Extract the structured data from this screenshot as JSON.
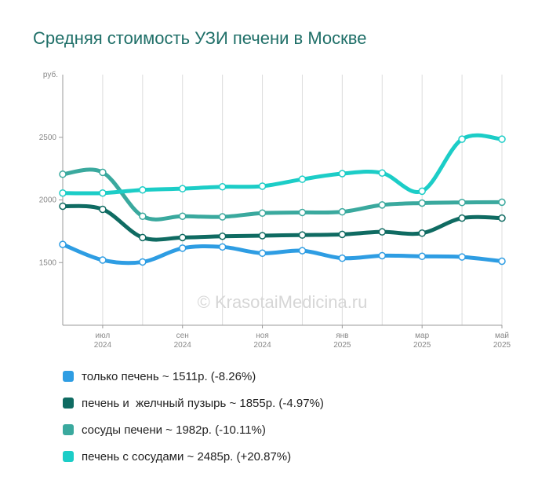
{
  "title": "Средняя стоимость УЗИ печени в Москве",
  "watermark": "© KrasotaiMedicina.ru",
  "chart_data": {
    "type": "line",
    "x": [
      "2024-06",
      "2024-07",
      "2024-08",
      "2024-09",
      "2024-10",
      "2024-11",
      "2024-12",
      "2025-01",
      "2025-02",
      "2025-03",
      "2025-04",
      "2025-05"
    ],
    "x_tick_labels": [
      {
        "x": "2024-07",
        "month": "июл",
        "year": "2024"
      },
      {
        "x": "2024-09",
        "month": "сен",
        "year": "2024"
      },
      {
        "x": "2024-11",
        "month": "ноя",
        "year": "2024"
      },
      {
        "x": "2025-01",
        "month": "янв",
        "year": "2025"
      },
      {
        "x": "2025-03",
        "month": "мар",
        "year": "2025"
      },
      {
        "x": "2025-05",
        "month": "май",
        "year": "2025"
      }
    ],
    "ylabel": "руб.",
    "ylim": [
      1000,
      3000
    ],
    "yticks": [
      1500,
      2000,
      2500
    ],
    "grid": true,
    "legend": "bottom",
    "series": [
      {
        "name": "только печень",
        "color": "#2e9de3",
        "values": [
          1645,
          1520,
          1505,
          1615,
          1625,
          1575,
          1595,
          1535,
          1555,
          1550,
          1545,
          1511
        ],
        "legend": "только печень ~ 1511р. (-8.26%)"
      },
      {
        "name": "печень и  желчный пузырь",
        "color": "#0f6b62",
        "values": [
          1950,
          1925,
          1700,
          1700,
          1710,
          1715,
          1720,
          1725,
          1745,
          1735,
          1855,
          1855
        ],
        "legend": "печень и  желчный пузырь ~ 1855р. (-4.97%)"
      },
      {
        "name": "сосуды печени",
        "color": "#3aa99e",
        "values": [
          2205,
          2220,
          1870,
          1870,
          1865,
          1895,
          1900,
          1905,
          1960,
          1975,
          1980,
          1982
        ],
        "legend": "сосуды печени ~ 1982р. (-10.11%)"
      },
      {
        "name": "печень с сосудами",
        "color": "#1ccdc7",
        "values": [
          2055,
          2055,
          2080,
          2090,
          2105,
          2110,
          2165,
          2210,
          2215,
          2070,
          2485,
          2485
        ],
        "legend": "печень с сосудами ~ 2485р. (+20.87%)"
      }
    ]
  }
}
